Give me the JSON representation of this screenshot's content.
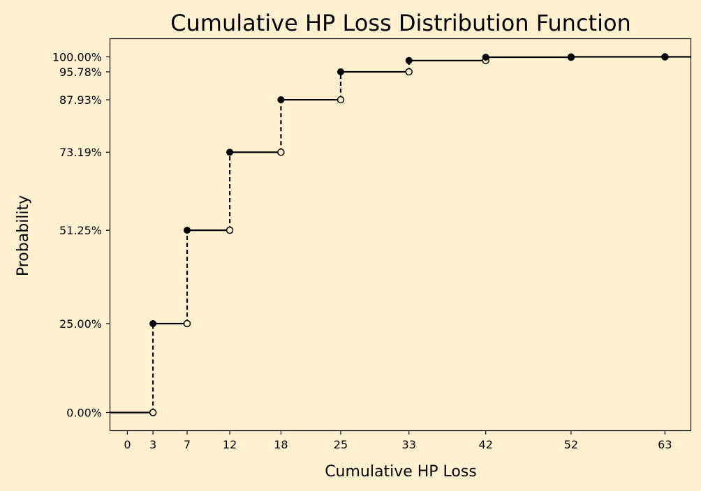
{
  "chart_data": {
    "type": "line",
    "title": "Cumulative HP Loss Distribution Function",
    "xlabel": "Cumulative HP Loss",
    "ylabel": "Probability",
    "xlim": [
      -2,
      66
    ],
    "ylim": [
      -0.05,
      1.05
    ],
    "x_ticks": [
      0,
      3,
      7,
      12,
      18,
      25,
      33,
      42,
      52,
      63
    ],
    "y_ticks": [
      0.0,
      0.25,
      0.5125,
      0.7319,
      0.8793,
      0.9578,
      1.0
    ],
    "y_tick_labels": [
      "0.00%",
      "25.00%",
      "51.25%",
      "73.19%",
      "87.93%",
      "95.78%",
      "100.00%"
    ],
    "steps": [
      {
        "x": 3,
        "p": 0.25,
        "prev": 0.0
      },
      {
        "x": 7,
        "p": 0.5125,
        "prev": 0.25
      },
      {
        "x": 12,
        "p": 0.7319,
        "prev": 0.5125
      },
      {
        "x": 18,
        "p": 0.8793,
        "prev": 0.7319
      },
      {
        "x": 25,
        "p": 0.9578,
        "prev": 0.8793
      },
      {
        "x": 33,
        "p": 0.9896,
        "prev": 0.9578
      },
      {
        "x": 42,
        "p": 0.999,
        "prev": 0.9896
      },
      {
        "x": 52,
        "p": 0.99995,
        "prev": 0.999
      },
      {
        "x": 63,
        "p": 1.0,
        "prev": 0.99995
      }
    ],
    "grid": false,
    "legend": "none",
    "colors": {
      "background": "#fff1d0",
      "line": "#000000"
    }
  }
}
